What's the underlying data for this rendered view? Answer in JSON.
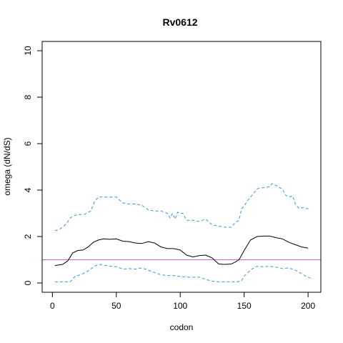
{
  "chart_data": {
    "type": "line",
    "title": "Rv0612",
    "xlabel": "codon",
    "ylabel": "omega (dN/dS)",
    "xlim": [
      -8,
      210
    ],
    "ylim": [
      -0.4,
      10.4
    ],
    "xticks": [
      0,
      50,
      100,
      150,
      200
    ],
    "yticks": [
      0,
      2,
      4,
      6,
      8,
      10
    ],
    "reference_line": {
      "y": 1,
      "color": "#cc66cc"
    },
    "colors": {
      "mean": "#000000",
      "bounds": "#3399dd"
    },
    "series": [
      {
        "name": "",
        "style": "solid",
        "x": [
          2,
          8,
          12,
          16,
          20,
          24,
          28,
          32,
          36,
          40,
          45,
          50,
          55,
          60,
          65,
          70,
          75,
          80,
          85,
          90,
          95,
          100,
          105,
          110,
          115,
          120,
          125,
          130,
          135,
          140,
          143,
          146,
          150,
          155,
          160,
          165,
          170,
          175,
          180,
          185,
          190,
          195,
          200
        ],
        "y": [
          0.75,
          0.8,
          0.95,
          1.3,
          1.4,
          1.42,
          1.55,
          1.75,
          1.85,
          1.9,
          1.88,
          1.9,
          1.8,
          1.78,
          1.72,
          1.7,
          1.78,
          1.72,
          1.55,
          1.48,
          1.48,
          1.42,
          1.2,
          1.12,
          1.18,
          1.2,
          1.08,
          0.82,
          0.8,
          0.82,
          0.9,
          1.0,
          1.4,
          1.85,
          2.0,
          2.02,
          2.02,
          1.95,
          1.9,
          1.75,
          1.65,
          1.55,
          1.5
        ]
      },
      {
        "name": "",
        "style": "dashed",
        "x": [
          2,
          5,
          8,
          11,
          14,
          17,
          20,
          25,
          30,
          33,
          36,
          40,
          45,
          50,
          55,
          60,
          65,
          70,
          75,
          80,
          85,
          90,
          92,
          94,
          96,
          98,
          100,
          102,
          105,
          110,
          115,
          120,
          125,
          130,
          135,
          140,
          143,
          146,
          148,
          150,
          152,
          155,
          158,
          160,
          163,
          166,
          170,
          172,
          175,
          178,
          180,
          182,
          185,
          188,
          190,
          193,
          196,
          199,
          202
        ],
        "y": [
          2.25,
          2.3,
          2.4,
          2.55,
          2.8,
          2.9,
          2.95,
          2.95,
          3.1,
          3.5,
          3.7,
          3.7,
          3.7,
          3.7,
          3.45,
          3.4,
          3.4,
          3.35,
          3.15,
          3.1,
          3.1,
          3.0,
          2.8,
          3.0,
          2.75,
          3.05,
          3.0,
          3.0,
          2.7,
          2.7,
          2.65,
          2.75,
          2.5,
          2.45,
          2.4,
          2.4,
          2.6,
          2.7,
          3.2,
          3.3,
          3.5,
          3.7,
          3.9,
          4.05,
          4.1,
          4.1,
          4.15,
          4.28,
          4.2,
          4.1,
          4.05,
          3.8,
          3.7,
          3.75,
          3.4,
          3.2,
          3.25,
          3.2,
          3.2
        ]
      },
      {
        "name": "",
        "style": "dashed",
        "x": [
          2,
          6,
          10,
          14,
          18,
          22,
          26,
          30,
          34,
          38,
          42,
          46,
          50,
          55,
          60,
          65,
          70,
          75,
          80,
          85,
          90,
          95,
          100,
          105,
          110,
          115,
          120,
          125,
          130,
          135,
          140,
          145,
          148,
          150,
          153,
          156,
          160,
          165,
          170,
          175,
          180,
          185,
          190,
          195,
          198,
          200,
          202
        ],
        "y": [
          0.05,
          0.05,
          0.05,
          0.05,
          0.3,
          0.35,
          0.45,
          0.6,
          0.75,
          0.8,
          0.75,
          0.72,
          0.7,
          0.6,
          0.62,
          0.6,
          0.65,
          0.55,
          0.45,
          0.35,
          0.32,
          0.32,
          0.28,
          0.25,
          0.25,
          0.25,
          0.15,
          0.08,
          0.05,
          0.05,
          0.05,
          0.05,
          0.1,
          0.3,
          0.45,
          0.6,
          0.72,
          0.7,
          0.72,
          0.68,
          0.62,
          0.65,
          0.55,
          0.4,
          0.3,
          0.25,
          0.2
        ]
      }
    ]
  }
}
